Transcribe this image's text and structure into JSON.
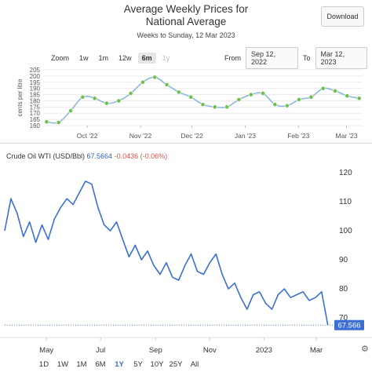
{
  "header": {
    "title_line1": "Average Weekly Prices for",
    "title_line2": "National Average",
    "subtitle": "Weeks to Sunday, 12 Mar 2023",
    "download_label": "Download"
  },
  "zoom": {
    "label": "Zoom",
    "options": [
      "1w",
      "1m",
      "12w",
      "6m",
      "1y"
    ],
    "selected": "6m",
    "disabled": [
      "1y"
    ]
  },
  "range": {
    "from_label": "From",
    "from_value": "Sep 12, 2022",
    "to_label": "To",
    "to_value": "Mar 12, 2023"
  },
  "wti": {
    "name": "Crude Oil WTI (USD/Bbl)",
    "value": "67.5664",
    "change": "-0.0436 (-0.06%)",
    "last_label": "67.566"
  },
  "timeframes": {
    "options": [
      "1D",
      "1W",
      "1M",
      "6M",
      "1Y",
      "5Y",
      "10Y",
      "25Y",
      "All"
    ],
    "selected": "1Y"
  },
  "colors": {
    "top_line": "#8cb8e0",
    "top_marker": "#6ec24a",
    "bottom_line": "#3b6fd6",
    "price_tag": "#3b6fd6"
  },
  "chart_data": [
    {
      "type": "line",
      "title": "Average Weekly Prices for National Average",
      "subtitle": "Weeks to Sunday, 12 Mar 2023",
      "ylabel": "cents per litre",
      "ylim": [
        160,
        205
      ],
      "yticks": [
        160,
        165,
        170,
        175,
        180,
        185,
        190,
        195,
        200,
        205
      ],
      "xtick_labels": [
        "Oct '22",
        "Nov '22",
        "Dec '22",
        "Jan '23",
        "Feb '23",
        "Mar '23"
      ],
      "grid": true,
      "series": [
        {
          "x": [
            "2022-09-11",
            "2022-09-18",
            "2022-09-25",
            "2022-10-02",
            "2022-10-09",
            "2022-10-16",
            "2022-10-23",
            "2022-10-30",
            "2022-11-06",
            "2022-11-13",
            "2022-11-20",
            "2022-11-27",
            "2022-12-04",
            "2022-12-11",
            "2022-12-18",
            "2022-12-25",
            "2023-01-01",
            "2023-01-08",
            "2023-01-15",
            "2023-01-22",
            "2023-01-29",
            "2023-02-05",
            "2023-02-12",
            "2023-02-19",
            "2023-02-26",
            "2023-03-05",
            "2023-03-12"
          ],
          "values": [
            163,
            162.5,
            172,
            183,
            182,
            178,
            180,
            186,
            195,
            199,
            193,
            187,
            183,
            177,
            175,
            175,
            181,
            185,
            186,
            177,
            176,
            181,
            183,
            190,
            188,
            184,
            182
          ]
        }
      ]
    },
    {
      "type": "line",
      "title": "Crude Oil WTI (USD/Bbl)",
      "ylim": [
        66,
        124
      ],
      "yticks": [
        70,
        80,
        90,
        100,
        110,
        120
      ],
      "xtick_labels": [
        "May",
        "Jul",
        "Sep",
        "Nov",
        "2023",
        "Mar"
      ],
      "grid": false,
      "last_value": 67.566,
      "series": [
        {
          "x": [
            "2022-03-15",
            "2022-03-22",
            "2022-03-29",
            "2022-04-05",
            "2022-04-12",
            "2022-04-19",
            "2022-04-26",
            "2022-05-03",
            "2022-05-10",
            "2022-05-17",
            "2022-05-24",
            "2022-05-31",
            "2022-06-07",
            "2022-06-14",
            "2022-06-21",
            "2022-06-28",
            "2022-07-05",
            "2022-07-12",
            "2022-07-19",
            "2022-07-26",
            "2022-08-02",
            "2022-08-09",
            "2022-08-16",
            "2022-08-23",
            "2022-08-30",
            "2022-09-06",
            "2022-09-13",
            "2022-09-20",
            "2022-09-27",
            "2022-10-04",
            "2022-10-11",
            "2022-10-18",
            "2022-10-25",
            "2022-11-01",
            "2022-11-08",
            "2022-11-15",
            "2022-11-22",
            "2022-11-29",
            "2022-12-06",
            "2022-12-13",
            "2022-12-20",
            "2022-12-27",
            "2023-01-03",
            "2023-01-10",
            "2023-01-17",
            "2023-01-24",
            "2023-01-31",
            "2023-02-07",
            "2023-02-14",
            "2023-02-21",
            "2023-02-28",
            "2023-03-07",
            "2023-03-14"
          ],
          "values": [
            100,
            111,
            106,
            98,
            103,
            96,
            102,
            97,
            104,
            108,
            111,
            109,
            113,
            117,
            116,
            108,
            102,
            100,
            103,
            97,
            91,
            95,
            90,
            93,
            88,
            85,
            89,
            84,
            83,
            88,
            92,
            86,
            85,
            89,
            92,
            85,
            80,
            82,
            77,
            73,
            78,
            79,
            75,
            73,
            78,
            80,
            77,
            78,
            79,
            76,
            77,
            79,
            67.6
          ]
        }
      ]
    }
  ]
}
